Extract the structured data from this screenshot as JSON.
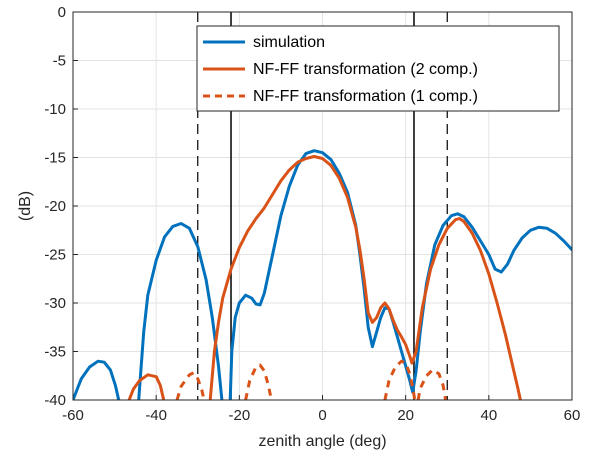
{
  "chart_data": {
    "type": "line",
    "title": "",
    "xlabel": "zenith angle (deg)",
    "ylabel": "(dB)",
    "xlim": [
      -60,
      60
    ],
    "ylim": [
      -40,
      0
    ],
    "xticks": [
      -60,
      -40,
      -20,
      0,
      20,
      40,
      60
    ],
    "yticks": [
      0,
      -5,
      -10,
      -15,
      -20,
      -25,
      -30,
      -35,
      -40
    ],
    "grid": true,
    "legend_position": "top-right",
    "colors": {
      "simulation": "#0072BD",
      "nf2": "#D95319",
      "nf1": "#D95319",
      "solid_vline": "#000000",
      "dashed_vline": "#000000"
    },
    "vlines_solid": [
      -22,
      22
    ],
    "vlines_dashed": [
      -30,
      30
    ],
    "series": [
      {
        "name": "simulation",
        "style": "solid",
        "points": [
          [
            -60,
            -40
          ],
          [
            -58,
            -37.8
          ],
          [
            -56,
            -36.6
          ],
          [
            -54,
            -36
          ],
          [
            -52.5,
            -36.1
          ],
          [
            -51,
            -36.9
          ],
          [
            -49.8,
            -38.5
          ],
          [
            -49,
            -40
          ],
          [
            -44.2,
            -40
          ],
          [
            -43,
            -33
          ],
          [
            -42,
            -29.2
          ],
          [
            -40,
            -25.6
          ],
          [
            -38,
            -23.2
          ],
          [
            -36,
            -22.1
          ],
          [
            -34,
            -21.8
          ],
          [
            -32,
            -22.3
          ],
          [
            -30,
            -24.2
          ],
          [
            -28,
            -27.6
          ],
          [
            -26.5,
            -31.5
          ],
          [
            -25,
            -36.5
          ],
          [
            -24.2,
            -40
          ],
          [
            -22.2,
            -40
          ],
          [
            -21.8,
            -35
          ],
          [
            -21,
            -31.5
          ],
          [
            -20,
            -30
          ],
          [
            -18.5,
            -29.2
          ],
          [
            -17,
            -29.5
          ],
          [
            -16,
            -30.1
          ],
          [
            -15,
            -30.2
          ],
          [
            -14,
            -29
          ],
          [
            -12,
            -25
          ],
          [
            -10,
            -21
          ],
          [
            -8,
            -18
          ],
          [
            -6,
            -15.8
          ],
          [
            -4,
            -14.6
          ],
          [
            -2,
            -14.3
          ],
          [
            0,
            -14.5
          ],
          [
            2,
            -15.2
          ],
          [
            4,
            -16.6
          ],
          [
            6,
            -18.6
          ],
          [
            8,
            -22
          ],
          [
            9,
            -25
          ],
          [
            10,
            -28.5
          ],
          [
            11,
            -32.5
          ],
          [
            12,
            -34.5
          ],
          [
            13,
            -33
          ],
          [
            14,
            -31.5
          ],
          [
            15,
            -30.5
          ],
          [
            16,
            -30.6
          ],
          [
            17,
            -32
          ],
          [
            18,
            -33.5
          ],
          [
            19,
            -35
          ],
          [
            20,
            -36.5
          ],
          [
            21,
            -38
          ],
          [
            21.7,
            -39.2
          ],
          [
            22.5,
            -37
          ],
          [
            23.5,
            -33
          ],
          [
            25,
            -28
          ],
          [
            27,
            -24
          ],
          [
            29,
            -22
          ],
          [
            31,
            -21
          ],
          [
            32.5,
            -20.8
          ],
          [
            34,
            -21.1
          ],
          [
            36,
            -22.2
          ],
          [
            38,
            -23.6
          ],
          [
            40,
            -25
          ],
          [
            41.5,
            -26.5
          ],
          [
            43,
            -26.8
          ],
          [
            44.5,
            -26
          ],
          [
            46,
            -24.6
          ],
          [
            48,
            -23.3
          ],
          [
            50,
            -22.5
          ],
          [
            52,
            -22.2
          ],
          [
            54,
            -22.3
          ],
          [
            56,
            -22.8
          ],
          [
            58,
            -23.6
          ],
          [
            60,
            -24.5
          ]
        ]
      },
      {
        "name": "NF-FF transformation (2 comp.)",
        "style": "solid",
        "points": [
          [
            -46.5,
            -40
          ],
          [
            -45.5,
            -38.9
          ],
          [
            -44,
            -38
          ],
          [
            -42,
            -37.4
          ],
          [
            -40,
            -37.6
          ],
          [
            -39,
            -38.5
          ],
          [
            -38.2,
            -40
          ],
          [
            -27,
            -40
          ],
          [
            -26,
            -35
          ],
          [
            -25,
            -32
          ],
          [
            -24,
            -29.5
          ],
          [
            -22,
            -26.5
          ],
          [
            -20,
            -24.3
          ],
          [
            -18,
            -22.6
          ],
          [
            -16,
            -21.3
          ],
          [
            -14,
            -20.2
          ],
          [
            -12,
            -18.8
          ],
          [
            -10,
            -17.4
          ],
          [
            -8,
            -16.3
          ],
          [
            -6,
            -15.5
          ],
          [
            -4,
            -15.1
          ],
          [
            -2,
            -14.9
          ],
          [
            0,
            -15.1
          ],
          [
            2,
            -15.8
          ],
          [
            4,
            -17.1
          ],
          [
            6,
            -19.1
          ],
          [
            8,
            -22.2
          ],
          [
            9,
            -24.5
          ],
          [
            10,
            -27.5
          ],
          [
            11,
            -31
          ],
          [
            12,
            -32
          ],
          [
            13,
            -31.5
          ],
          [
            14,
            -30.5
          ],
          [
            15,
            -30
          ],
          [
            16,
            -30.6
          ],
          [
            17,
            -31.8
          ],
          [
            18,
            -32.8
          ],
          [
            19,
            -33.5
          ],
          [
            20,
            -34.3
          ],
          [
            21,
            -35.5
          ],
          [
            21.5,
            -36.2
          ],
          [
            22.5,
            -35
          ],
          [
            24,
            -30.5
          ],
          [
            26,
            -26.5
          ],
          [
            28,
            -24
          ],
          [
            30,
            -22.3
          ],
          [
            32,
            -21.4
          ],
          [
            33,
            -21.3
          ],
          [
            34,
            -21.6
          ],
          [
            36,
            -22.8
          ],
          [
            38,
            -24.6
          ],
          [
            40,
            -27
          ],
          [
            42,
            -30
          ],
          [
            44,
            -33.3
          ],
          [
            46,
            -37
          ],
          [
            47,
            -38.8
          ],
          [
            47.6,
            -40
          ]
        ]
      },
      {
        "name": "NF-FF transformation (1 comp.)",
        "style": "dashed",
        "points": [
          [
            -35,
            -40
          ],
          [
            -34,
            -38.6
          ],
          [
            -32,
            -37.4
          ],
          [
            -31,
            -37.2
          ],
          [
            -30,
            -37.8
          ],
          [
            -29,
            -39
          ],
          [
            -28.5,
            -40
          ],
          [
            -18.5,
            -40
          ],
          [
            -17.5,
            -38
          ],
          [
            -16,
            -36.6
          ],
          [
            -15,
            -36.4
          ],
          [
            -14,
            -37
          ],
          [
            -13,
            -38.5
          ],
          [
            -12.3,
            -40
          ],
          [
            15,
            -40
          ],
          [
            16,
            -38
          ],
          [
            17.5,
            -36.6
          ],
          [
            19,
            -36
          ],
          [
            20,
            -36.2
          ],
          [
            21,
            -37.3
          ],
          [
            21.8,
            -39
          ],
          [
            22.2,
            -40
          ],
          [
            23,
            -40
          ],
          [
            23.5,
            -38.8
          ],
          [
            25,
            -37.5
          ],
          [
            26.5,
            -36.9
          ],
          [
            28,
            -37.3
          ],
          [
            29,
            -38.5
          ],
          [
            29.6,
            -40
          ]
        ]
      }
    ]
  }
}
